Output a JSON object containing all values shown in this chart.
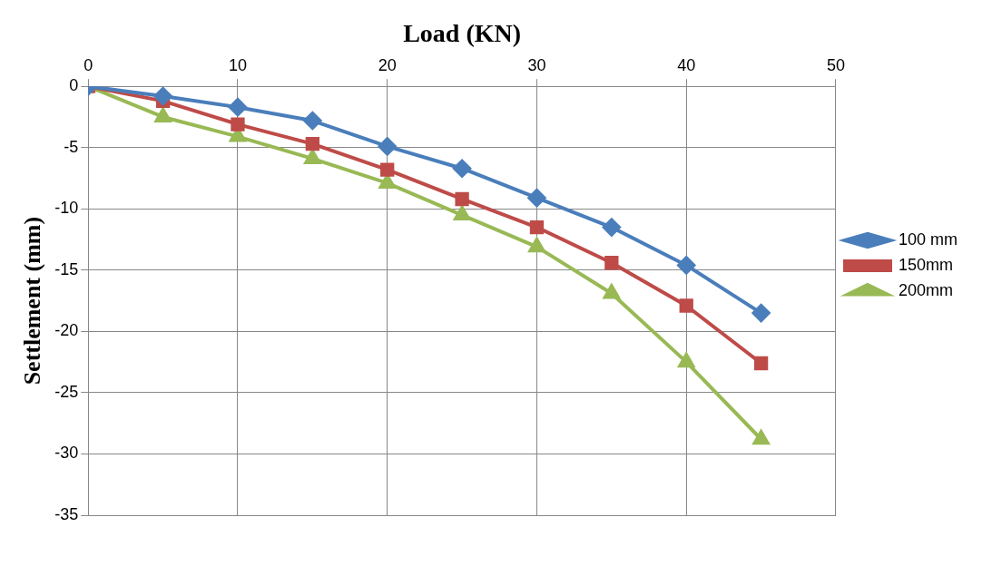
{
  "chart_data": {
    "type": "line",
    "xlabel": "Load (KN)",
    "ylabel": "Settlement (mm)",
    "x": [
      0,
      5,
      10,
      15,
      20,
      25,
      30,
      35,
      40,
      45
    ],
    "series": [
      {
        "name": "100 mm",
        "color": "#4a7ebb",
        "marker": "diamond",
        "values": [
          0,
          -0.8,
          -1.7,
          -2.8,
          -4.9,
          -6.7,
          -9.1,
          -11.5,
          -14.6,
          -18.5
        ]
      },
      {
        "name": "150mm",
        "color": "#be4b48",
        "marker": "square",
        "values": [
          0,
          -1.2,
          -3.1,
          -4.7,
          -6.8,
          -9.2,
          -11.5,
          -14.4,
          -17.9,
          -22.6
        ]
      },
      {
        "name": "200mm",
        "color": "#98b954",
        "marker": "triangle",
        "values": [
          0,
          -2.5,
          -4.1,
          -5.9,
          -7.9,
          -10.5,
          -13.1,
          -16.9,
          -22.5,
          -28.8
        ]
      }
    ],
    "xlim": [
      0,
      50
    ],
    "xticks": [
      0,
      10,
      20,
      30,
      40,
      50
    ],
    "ylim": [
      -35,
      0
    ],
    "yticks": [
      -35,
      -30,
      -25,
      -20,
      -15,
      -10,
      -5,
      0
    ],
    "grid": true,
    "legend": "right",
    "line_style": "solid"
  }
}
